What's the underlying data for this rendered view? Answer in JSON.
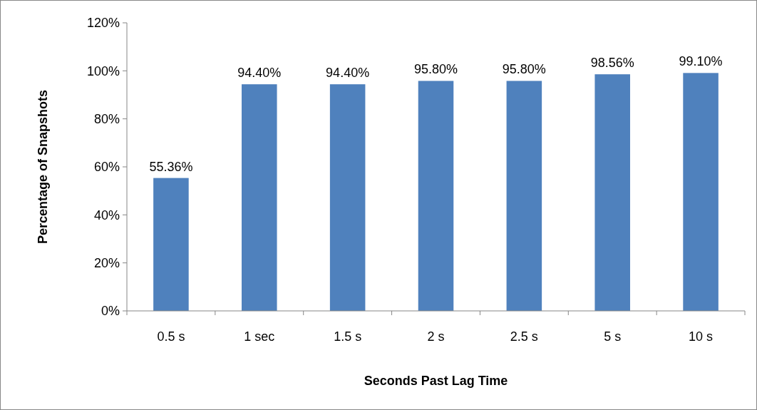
{
  "chart_data": {
    "type": "bar",
    "xlabel": "Seconds Past Lag Time",
    "ylabel": "Percentage of Snapshots",
    "categories": [
      "0.5 s",
      "1 sec",
      "1.5 s",
      "2 s",
      "2.5 s",
      "5 s",
      "10 s"
    ],
    "values": [
      55.36,
      94.4,
      94.4,
      95.8,
      95.8,
      98.56,
      99.1
    ],
    "value_labels": [
      "55.36%",
      "94.40%",
      "94.40%",
      "95.80%",
      "95.80%",
      "98.56%",
      "99.10%"
    ],
    "color": "#4f81bd",
    "ylim": [
      0,
      120
    ],
    "yticks": [
      {
        "value": 0,
        "label": "0%"
      },
      {
        "value": 20,
        "label": "20%"
      },
      {
        "value": 40,
        "label": "40%"
      },
      {
        "value": 60,
        "label": "60%"
      },
      {
        "value": 80,
        "label": "80%"
      },
      {
        "value": 100,
        "label": "100%"
      },
      {
        "value": 120,
        "label": "120%"
      }
    ],
    "grid": false
  }
}
